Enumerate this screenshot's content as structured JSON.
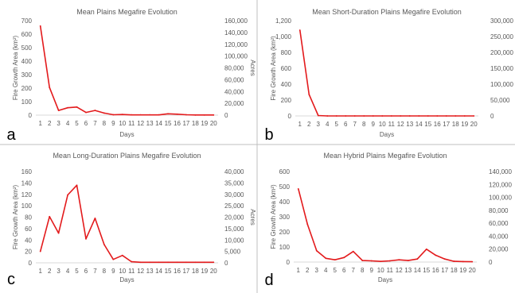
{
  "chart_data": [
    {
      "letter": "a",
      "type": "line",
      "title": "Mean Plains Megafire Evolution",
      "xlabel": "Days",
      "ylabel": "Fire Growth Area (km²)",
      "y2label": "Acres",
      "x": [
        1,
        2,
        3,
        4,
        5,
        6,
        7,
        8,
        9,
        10,
        11,
        12,
        13,
        14,
        15,
        16,
        17,
        18,
        19,
        20
      ],
      "series": [
        {
          "values": [
            660,
            205,
            35,
            55,
            60,
            20,
            35,
            15,
            3,
            5,
            2,
            2,
            2,
            2,
            10,
            7,
            3,
            1,
            1,
            1
          ]
        }
      ],
      "ylim": [
        0,
        700
      ],
      "yticks": [
        "0",
        "100",
        "200",
        "300",
        "400",
        "500",
        "600",
        "700"
      ],
      "y2ticks": [
        "0",
        "20,000",
        "40,000",
        "60,000",
        "80,000",
        "100,000",
        "120,000",
        "140,000",
        "160,000"
      ],
      "grid": false,
      "color": "#e31a1c"
    },
    {
      "letter": "b",
      "type": "line",
      "title": "Mean Short-Duration Plains Megafire Evolution",
      "xlabel": "Days",
      "ylabel": "Fire Growth Area (km²)",
      "y2label": "",
      "x": [
        1,
        2,
        3,
        4,
        5,
        6,
        7,
        8,
        9,
        10,
        11,
        12,
        13,
        14,
        15,
        16,
        17,
        18,
        19,
        20
      ],
      "series": [
        {
          "values": [
            1080,
            270,
            5,
            0,
            0,
            0,
            0,
            0,
            0,
            0,
            0,
            0,
            0,
            0,
            0,
            0,
            0,
            0,
            0,
            0
          ]
        }
      ],
      "ylim": [
        0,
        1200
      ],
      "yticks": [
        "0",
        "200",
        "400",
        "600",
        "800",
        "1,000",
        "1,200"
      ],
      "y2ticks": [
        "0",
        "50,000",
        "100,000",
        "150,000",
        "200,000",
        "250,000",
        "300,000"
      ],
      "grid": false,
      "color": "#e31a1c"
    },
    {
      "letter": "c",
      "type": "line",
      "title": "Mean Long-Duration Plains Megafire Evolution",
      "xlabel": "Days",
      "ylabel": "Fire Growth Area (km²)",
      "y2label": "Acres",
      "x": [
        1,
        2,
        3,
        4,
        5,
        6,
        7,
        8,
        9,
        10,
        11,
        12,
        13,
        14,
        15,
        16,
        17,
        18,
        19,
        20
      ],
      "series": [
        {
          "values": [
            20,
            81,
            52,
            119,
            136,
            42,
            78,
            32,
            6,
            13,
            2,
            1,
            1,
            1,
            1,
            1,
            1,
            1,
            1,
            1
          ]
        }
      ],
      "ylim": [
        0,
        160
      ],
      "yticks": [
        "0",
        "20",
        "40",
        "60",
        "80",
        "100",
        "120",
        "140",
        "160"
      ],
      "y2ticks": [
        "0",
        "5,000",
        "10,000",
        "15,000",
        "20,000",
        "25,000",
        "30,000",
        "35,000",
        "40,000"
      ],
      "grid": false,
      "color": "#e31a1c"
    },
    {
      "letter": "d",
      "type": "line",
      "title": "Mean Hybrid Plains Megafire Evolution",
      "xlabel": "Days",
      "ylabel": "Fire Growth Area (km²)",
      "y2label": "",
      "x": [
        1,
        2,
        3,
        4,
        5,
        6,
        7,
        8,
        9,
        10,
        11,
        12,
        13,
        14,
        15,
        16,
        17,
        18,
        19,
        20
      ],
      "series": [
        {
          "values": [
            485,
            250,
            75,
            25,
            15,
            30,
            70,
            10,
            8,
            4,
            8,
            15,
            10,
            20,
            85,
            45,
            20,
            5,
            3,
            2
          ]
        }
      ],
      "ylim": [
        0,
        600
      ],
      "yticks": [
        "0",
        "100",
        "200",
        "300",
        "400",
        "500",
        "600"
      ],
      "y2ticks": [
        "0",
        "20,000",
        "40,000",
        "60,000",
        "80,000",
        "100,000",
        "120,000",
        "140,000"
      ],
      "grid": false,
      "color": "#e31a1c"
    }
  ]
}
